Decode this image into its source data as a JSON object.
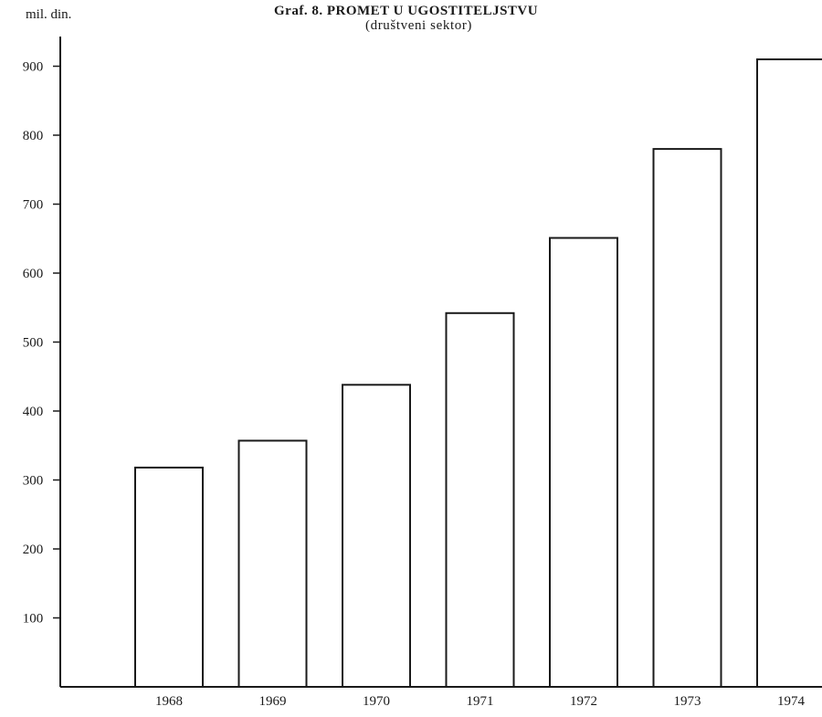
{
  "chart_data": {
    "type": "bar",
    "title": "Graf. 8.  PROMET U UGOSTITELJSTVU",
    "subtitle": "(društveni sektor)",
    "ylabel": "mil. din.",
    "xlabel": "",
    "categories": [
      "1968",
      "1969",
      "1970",
      "1971",
      "1972",
      "1973",
      "1974"
    ],
    "values": [
      318,
      357,
      438,
      542,
      651,
      780,
      910
    ],
    "ylim": [
      0,
      930
    ],
    "yticks": [
      100,
      200,
      300,
      400,
      500,
      600,
      700,
      800,
      900
    ],
    "ytick_labels": [
      "100",
      "200",
      "300",
      "400",
      "500",
      "600",
      "700",
      "800",
      "900"
    ],
    "grid": false,
    "legend": "none",
    "bar_fill": "#ffffff",
    "stroke_color": "#1a1a1a"
  }
}
